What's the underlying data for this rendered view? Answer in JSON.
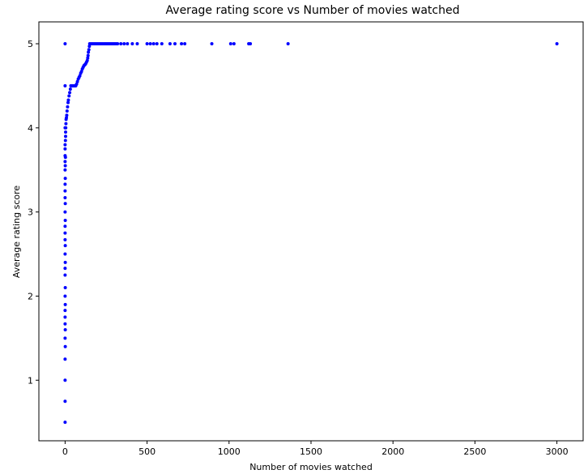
{
  "chart_data": {
    "type": "scatter",
    "title": "Average rating score vs Number of movies watched",
    "xlabel": "Number of movies watched",
    "ylabel": "Average rating score",
    "xlim": [
      -160,
      3160
    ],
    "ylim": [
      0.28,
      5.26
    ],
    "xticks": [
      0,
      500,
      1000,
      1500,
      2000,
      2500,
      3000
    ],
    "yticks": [
      1,
      2,
      3,
      4,
      5
    ],
    "grid": false,
    "legend": "none",
    "marker_color": "#0000ff",
    "series": [
      {
        "points": [
          [
            0,
            0.5
          ],
          [
            0,
            0.75
          ],
          [
            0,
            1.0
          ],
          [
            0,
            1.25
          ],
          [
            0,
            1.5
          ],
          [
            0,
            1.67
          ],
          [
            0,
            1.75
          ],
          [
            0,
            1.83
          ],
          [
            0,
            2.0
          ],
          [
            0,
            2.25
          ],
          [
            0,
            2.33
          ],
          [
            0,
            2.5
          ],
          [
            0,
            2.67
          ],
          [
            0,
            2.75
          ],
          [
            0,
            2.83
          ],
          [
            0,
            3.0
          ],
          [
            0,
            3.17
          ],
          [
            0,
            3.25
          ],
          [
            0,
            3.33
          ],
          [
            0,
            3.5
          ],
          [
            0,
            3.6
          ],
          [
            0,
            3.67
          ],
          [
            0,
            3.75
          ],
          [
            0,
            3.8
          ],
          [
            0,
            4.0
          ],
          [
            0,
            4.5
          ],
          [
            0,
            5.0
          ],
          [
            1,
            1.4
          ],
          [
            1,
            1.6
          ],
          [
            1,
            1.9
          ],
          [
            1,
            2.1
          ],
          [
            1,
            2.4
          ],
          [
            1,
            2.6
          ],
          [
            1,
            2.9
          ],
          [
            1,
            3.1
          ],
          [
            1,
            3.4
          ],
          [
            1,
            3.55
          ],
          [
            2,
            3.65
          ],
          [
            2,
            3.85
          ],
          [
            3,
            3.9
          ],
          [
            3,
            3.95
          ],
          [
            4,
            4.0
          ],
          [
            5,
            4.05
          ],
          [
            6,
            4.1
          ],
          [
            8,
            4.12
          ],
          [
            10,
            4.15
          ],
          [
            12,
            4.2
          ],
          [
            15,
            4.25
          ],
          [
            18,
            4.3
          ],
          [
            20,
            4.33
          ],
          [
            24,
            4.38
          ],
          [
            28,
            4.42
          ],
          [
            32,
            4.46
          ],
          [
            35,
            4.5
          ],
          [
            40,
            4.5
          ],
          [
            45,
            4.5
          ],
          [
            50,
            4.5
          ],
          [
            55,
            4.5
          ],
          [
            60,
            4.5
          ],
          [
            65,
            4.5
          ],
          [
            70,
            4.52
          ],
          [
            75,
            4.55
          ],
          [
            80,
            4.58
          ],
          [
            85,
            4.6
          ],
          [
            90,
            4.62
          ],
          [
            95,
            4.65
          ],
          [
            100,
            4.67
          ],
          [
            105,
            4.7
          ],
          [
            110,
            4.72
          ],
          [
            115,
            4.74
          ],
          [
            120,
            4.75
          ],
          [
            125,
            4.76
          ],
          [
            130,
            4.78
          ],
          [
            135,
            4.8
          ],
          [
            138,
            4.83
          ],
          [
            140,
            4.86
          ],
          [
            142,
            4.9
          ],
          [
            145,
            4.93
          ],
          [
            148,
            4.97
          ],
          [
            150,
            5.0
          ],
          [
            160,
            5.0
          ],
          [
            170,
            5.0
          ],
          [
            180,
            5.0
          ],
          [
            190,
            5.0
          ],
          [
            200,
            5.0
          ],
          [
            210,
            5.0
          ],
          [
            220,
            5.0
          ],
          [
            230,
            5.0
          ],
          [
            240,
            5.0
          ],
          [
            250,
            5.0
          ],
          [
            260,
            5.0
          ],
          [
            270,
            5.0
          ],
          [
            280,
            5.0
          ],
          [
            290,
            5.0
          ],
          [
            300,
            5.0
          ],
          [
            310,
            5.0
          ],
          [
            320,
            5.0
          ],
          [
            340,
            5.0
          ],
          [
            360,
            5.0
          ],
          [
            380,
            5.0
          ],
          [
            410,
            5.0
          ],
          [
            440,
            5.0
          ],
          [
            500,
            5.0
          ],
          [
            520,
            5.0
          ],
          [
            540,
            5.0
          ],
          [
            560,
            5.0
          ],
          [
            590,
            5.0
          ],
          [
            640,
            5.0
          ],
          [
            670,
            5.0
          ],
          [
            710,
            5.0
          ],
          [
            730,
            5.0
          ],
          [
            895,
            5.0
          ],
          [
            1010,
            5.0
          ],
          [
            1030,
            5.0
          ],
          [
            1120,
            5.0
          ],
          [
            1130,
            5.0
          ],
          [
            1360,
            5.0
          ],
          [
            3000,
            5.0
          ]
        ]
      }
    ]
  }
}
